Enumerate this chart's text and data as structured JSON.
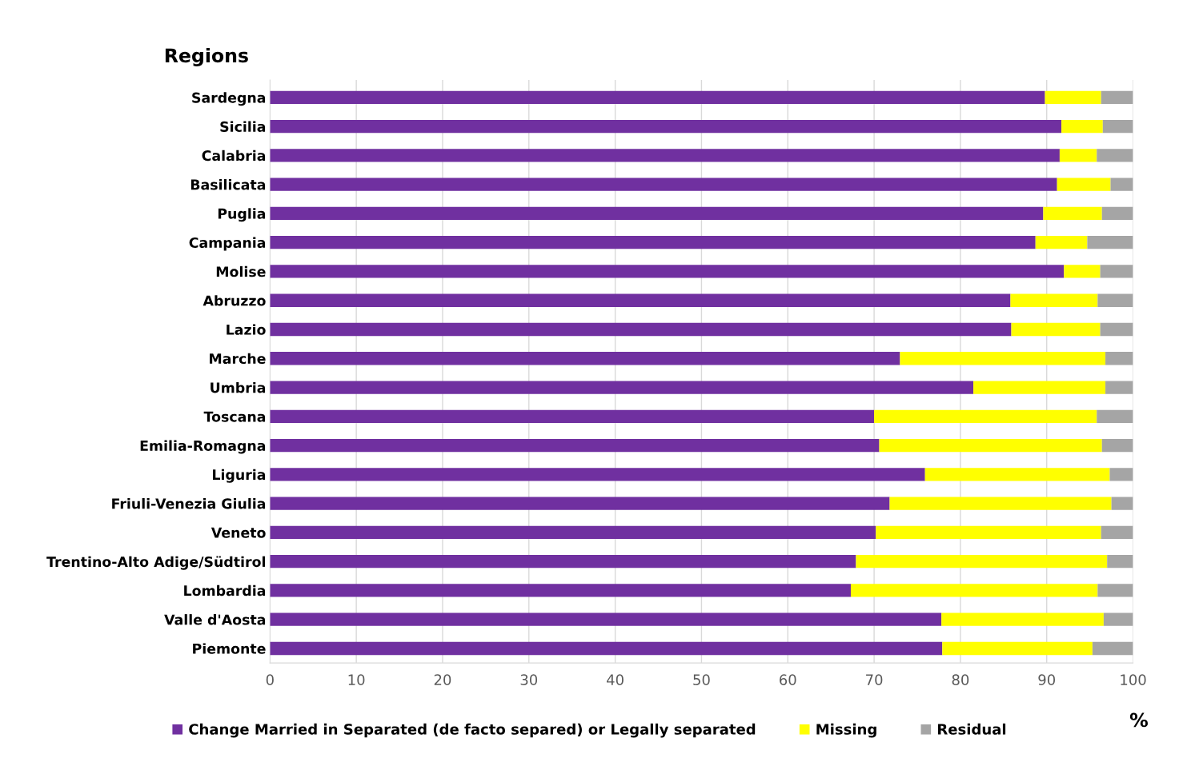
{
  "chart_data": {
    "type": "bar",
    "orientation": "horizontal",
    "stacked": true,
    "ylabel": "Regions",
    "xlabel": "%",
    "categories": [
      "Sardegna",
      "Sicilia",
      "Calabria",
      "Basilicata",
      "Puglia",
      "Campania",
      "Molise",
      "Abruzzo",
      "Lazio",
      "Marche",
      "Umbria",
      "Toscana",
      "Emilia-Romagna",
      "Liguria",
      "Friuli-Venezia Giulia",
      "Veneto",
      "Trentino-Alto Adige/Südtirol",
      "Lombardia",
      "Valle d'Aosta",
      "Piemonte"
    ],
    "series": [
      {
        "name": "Change Married in Separated (de facto separed) or Legally separated",
        "color": "#7030a0",
        "values": [
          89.8,
          91.7,
          91.5,
          91.2,
          89.6,
          88.7,
          92.0,
          85.8,
          85.9,
          73.0,
          81.5,
          70.0,
          70.6,
          75.9,
          71.8,
          70.2,
          67.9,
          67.3,
          77.8,
          77.9
        ]
      },
      {
        "name": "Missing",
        "color": "#ffff00",
        "values": [
          6.5,
          4.8,
          4.3,
          6.2,
          6.8,
          6.0,
          4.2,
          10.1,
          10.3,
          23.8,
          15.3,
          25.8,
          25.8,
          21.4,
          25.7,
          26.1,
          29.1,
          28.6,
          18.8,
          17.4
        ]
      },
      {
        "name": "Residual",
        "color": "#a5a5a5",
        "values": [
          3.7,
          3.5,
          4.2,
          2.6,
          3.6,
          5.3,
          3.8,
          4.1,
          3.8,
          3.2,
          3.2,
          4.2,
          3.6,
          2.7,
          2.5,
          3.7,
          3.0,
          4.1,
          3.4,
          4.7
        ]
      }
    ],
    "xlim": [
      0,
      100
    ],
    "xticks": [
      0,
      10,
      20,
      30,
      40,
      50,
      60,
      70,
      80,
      90,
      100
    ],
    "grid": "x",
    "legend": "bottom"
  }
}
